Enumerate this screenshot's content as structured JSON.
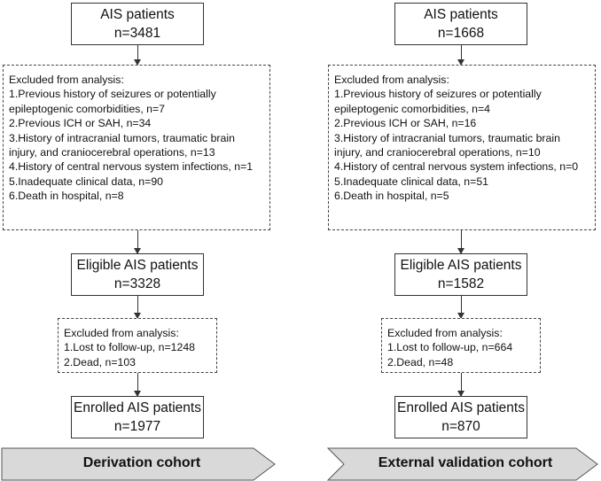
{
  "derivation": {
    "start": {
      "title": "AIS patients",
      "n": "n=3481"
    },
    "excluded1": {
      "heading": "Excluded from analysis:",
      "items": [
        "1.Previous history of seizures or potentially",
        "epileptogenic comorbidities, n=7",
        "2.Previous ICH or SAH, n=34",
        "3.History of intracranial tumors, traumatic brain",
        "injury, and craniocerebral operations, n=13",
        "4.History of central nervous system infections, n=1",
        "5.Inadequate clinical data, n=90",
        "6.Death in hospital, n=8"
      ]
    },
    "eligible": {
      "title": "Eligible AIS patients",
      "n": "n=3328"
    },
    "excluded2": {
      "heading": "Excluded from analysis:",
      "items": [
        "1.Lost to follow-up, n=1248",
        "2.Dead, n=103"
      ]
    },
    "enrolled": {
      "title": "Enrolled AIS patients",
      "n": "n=1977"
    },
    "banner": "Derivation cohort"
  },
  "validation": {
    "start": {
      "title": "AIS patients",
      "n": "n=1668"
    },
    "excluded1": {
      "heading": "Excluded from analysis:",
      "items": [
        "1.Previous history of seizures or potentially",
        "epileptogenic comorbidities, n=4",
        "2.Previous ICH or SAH, n=16",
        "3.History of intracranial tumors, traumatic brain",
        "injury, and craniocerebral operations, n=10",
        "4.History of central nervous system infections, n=0",
        "5.Inadequate clinical data, n=51",
        "6.Death in hospital, n=5"
      ]
    },
    "eligible": {
      "title": "Eligible AIS patients",
      "n": "n=1582"
    },
    "excluded2": {
      "heading": "Excluded from analysis:",
      "items": [
        "1.Lost to follow-up, n=664",
        "2.Dead, n=48"
      ]
    },
    "enrolled": {
      "title": "Enrolled AIS patients",
      "n": "n=870"
    },
    "banner": "External validation cohort"
  }
}
